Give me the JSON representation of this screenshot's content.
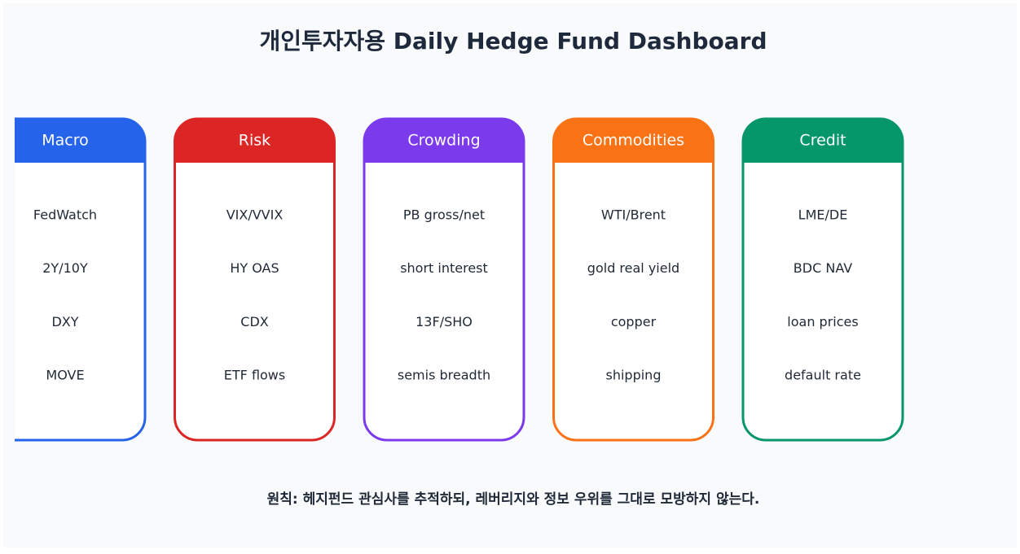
{
  "title": "개인투자자용 Daily Hedge Fund Dashboard",
  "columns": [
    {
      "header": "Macro",
      "color": "#2563eb",
      "items": [
        "FedWatch",
        "2Y/10Y",
        "DXY",
        "MOVE"
      ]
    },
    {
      "header": "Risk",
      "color": "#dc2626",
      "items": [
        "VIX/VVIX",
        "HY OAS",
        "CDX",
        "ETF flows"
      ]
    },
    {
      "header": "Crowding",
      "color": "#7c3aed",
      "items": [
        "PB gross/net",
        "short interest",
        "13F/SHO",
        "semis breadth"
      ]
    },
    {
      "header": "Commodities",
      "color": "#f97316",
      "items": [
        "WTI/Brent",
        "gold real yield",
        "copper",
        "shipping"
      ]
    },
    {
      "header": "Credit",
      "color": "#059669",
      "items": [
        "LME/DE",
        "BDC NAV",
        "loan prices",
        "default rate"
      ]
    }
  ],
  "note": "원칙: 헤지펀드 관심사를 추적하되, 레버리지와 정보 우위를 그대로 모방하지 않는다."
}
